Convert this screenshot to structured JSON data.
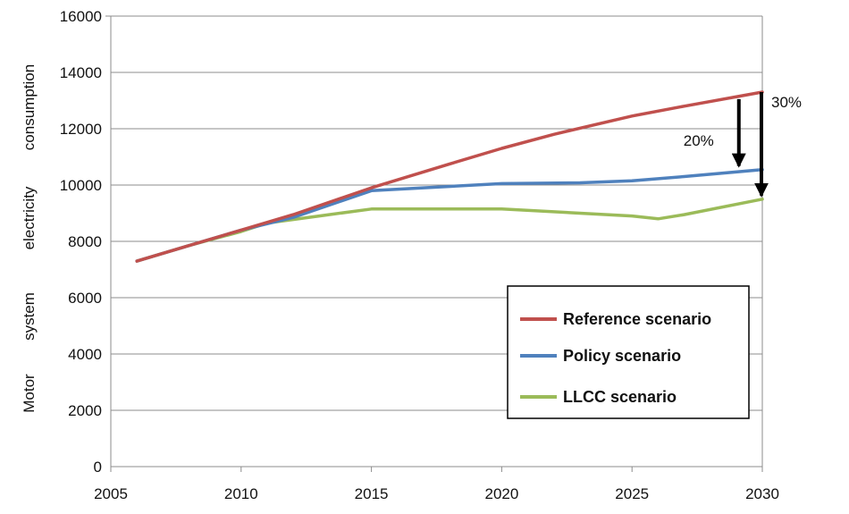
{
  "chart_data": {
    "type": "line",
    "title": "",
    "xlabel": "",
    "ylabel": "Motor system electricity consumption",
    "ylabel_words": [
      "Motor",
      "system",
      "electricity",
      "consumption"
    ],
    "xlim": [
      2005,
      2030
    ],
    "ylim": [
      0,
      16000
    ],
    "x_ticks": [
      2005,
      2010,
      2015,
      2020,
      2025,
      2030
    ],
    "y_ticks": [
      0,
      2000,
      4000,
      6000,
      8000,
      10000,
      12000,
      14000,
      16000
    ],
    "grid": "horizontal",
    "legend_position": "bottom-right",
    "series": [
      {
        "name": "Reference scenario",
        "color": "#c0504d",
        "points": [
          [
            2006,
            7300
          ],
          [
            2008,
            7850
          ],
          [
            2010,
            8400
          ],
          [
            2012,
            8950
          ],
          [
            2015,
            9900
          ],
          [
            2018,
            10750
          ],
          [
            2020,
            11300
          ],
          [
            2022,
            11800
          ],
          [
            2025,
            12450
          ],
          [
            2027,
            12800
          ],
          [
            2030,
            13300
          ]
        ]
      },
      {
        "name": "Policy scenario",
        "color": "#4f81bd",
        "points": [
          [
            2006,
            7300
          ],
          [
            2008,
            7850
          ],
          [
            2010,
            8400
          ],
          [
            2012,
            8850
          ],
          [
            2015,
            9800
          ],
          [
            2017,
            9900
          ],
          [
            2020,
            10050
          ],
          [
            2023,
            10080
          ],
          [
            2025,
            10150
          ],
          [
            2027,
            10300
          ],
          [
            2030,
            10550
          ]
        ]
      },
      {
        "name": "LLCC scenario",
        "color": "#9bbb59",
        "points": [
          [
            2006,
            7300
          ],
          [
            2008,
            7850
          ],
          [
            2010,
            8350
          ],
          [
            2011,
            8650
          ],
          [
            2013,
            8900
          ],
          [
            2015,
            9150
          ],
          [
            2018,
            9150
          ],
          [
            2020,
            9150
          ],
          [
            2023,
            9000
          ],
          [
            2025,
            8900
          ],
          [
            2026,
            8800
          ],
          [
            2027,
            8950
          ],
          [
            2030,
            9500
          ]
        ]
      }
    ],
    "annotations": [
      {
        "text": "20%",
        "x": 2029.1,
        "from_y": 13050,
        "to_y": 10550
      },
      {
        "text": "30%",
        "x": 2030,
        "from_y": 13300,
        "to_y": 9500
      }
    ]
  }
}
